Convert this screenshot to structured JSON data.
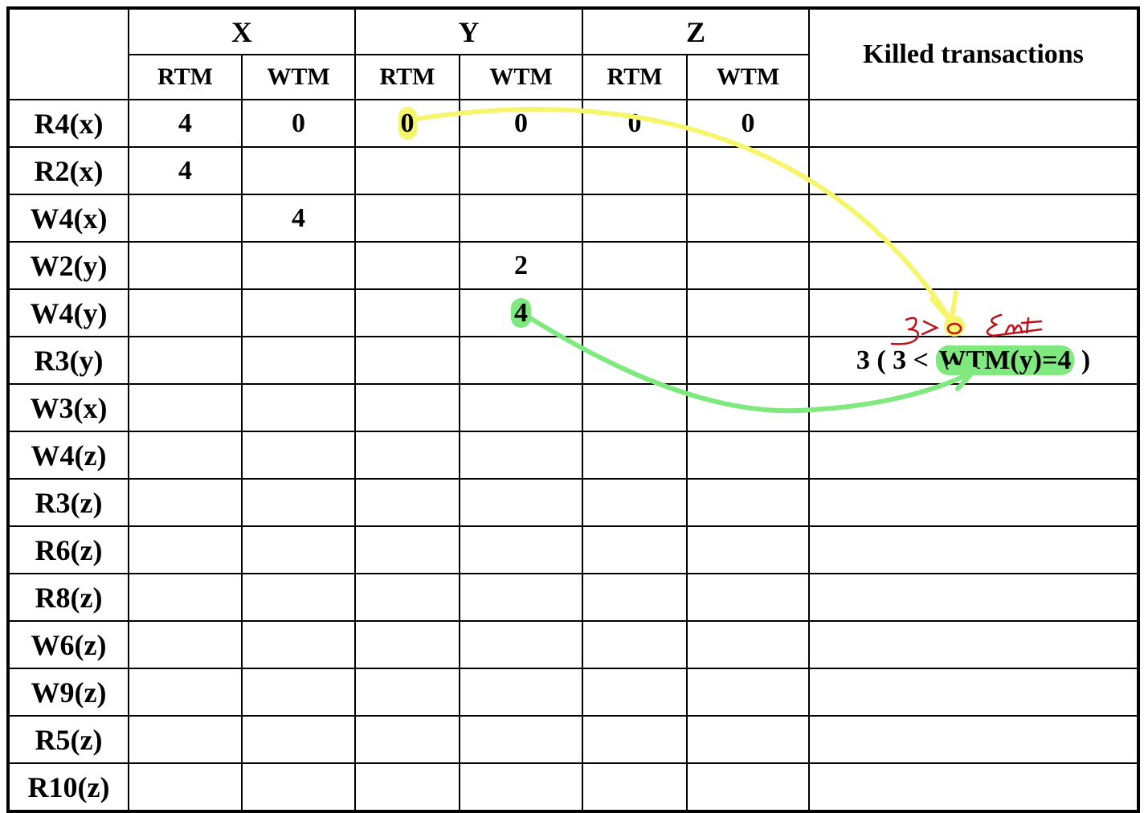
{
  "columns": {
    "groups": [
      "X",
      "Y",
      "Z"
    ],
    "sub_labels": [
      "RTM",
      "WTM"
    ],
    "killed_header": "Killed transactions"
  },
  "rows": [
    {
      "op": "R4(x)",
      "status": "executed",
      "cells": [
        "4",
        "0",
        "0",
        "0",
        "0",
        "0"
      ],
      "killed": ""
    },
    {
      "op": "R2(x)",
      "status": "executed",
      "cells": [
        "4",
        "",
        "",
        "",
        "",
        ""
      ],
      "killed": ""
    },
    {
      "op": "W4(x)",
      "status": "executed",
      "cells": [
        "",
        "4",
        "",
        "",
        "",
        ""
      ],
      "killed": ""
    },
    {
      "op": "W2(y)",
      "status": "executed",
      "cells": [
        "",
        "",
        "",
        "2",
        "",
        ""
      ],
      "killed": ""
    },
    {
      "op": "W4(y)",
      "status": "executed",
      "cells": [
        "",
        "",
        "",
        "4",
        "",
        ""
      ],
      "killed": ""
    },
    {
      "op": "R3(y)",
      "status": "killed",
      "cells": [
        "",
        "",
        "",
        "",
        "",
        ""
      ],
      "killed_parts": {
        "prefix": "3 ( 3 < ",
        "highlight": "WTM(y)=4",
        "suffix": " )"
      }
    },
    {
      "op": "W3(x)",
      "status": "pending",
      "cells": [
        "",
        "",
        "",
        "",
        "",
        ""
      ],
      "killed": ""
    },
    {
      "op": "W4(z)",
      "status": "pending",
      "cells": [
        "",
        "",
        "",
        "",
        "",
        ""
      ],
      "killed": ""
    },
    {
      "op": "R3(z)",
      "status": "pending",
      "cells": [
        "",
        "",
        "",
        "",
        "",
        ""
      ],
      "killed": ""
    },
    {
      "op": "R6(z)",
      "status": "pending",
      "cells": [
        "",
        "",
        "",
        "",
        "",
        ""
      ],
      "killed": ""
    },
    {
      "op": "R8(z)",
      "status": "pending",
      "cells": [
        "",
        "",
        "",
        "",
        "",
        ""
      ],
      "killed": ""
    },
    {
      "op": "W6(z)",
      "status": "pending",
      "cells": [
        "",
        "",
        "",
        "",
        "",
        ""
      ],
      "killed": ""
    },
    {
      "op": "W9(z)",
      "status": "pending",
      "cells": [
        "",
        "",
        "",
        "",
        "",
        ""
      ],
      "killed": ""
    },
    {
      "op": "R5(z)",
      "status": "pending",
      "cells": [
        "",
        "",
        "",
        "",
        "",
        ""
      ],
      "killed": ""
    },
    {
      "op": "R10(z)",
      "status": "pending",
      "cells": [
        "",
        "",
        "",
        "",
        "",
        ""
      ],
      "killed": ""
    }
  ],
  "annotations": {
    "handwritten_note": "3>0 Ent",
    "highlight_colors": {
      "yellow": "#f6f56e",
      "green": "#7fe87f",
      "red_ink": "#c0101a"
    }
  }
}
